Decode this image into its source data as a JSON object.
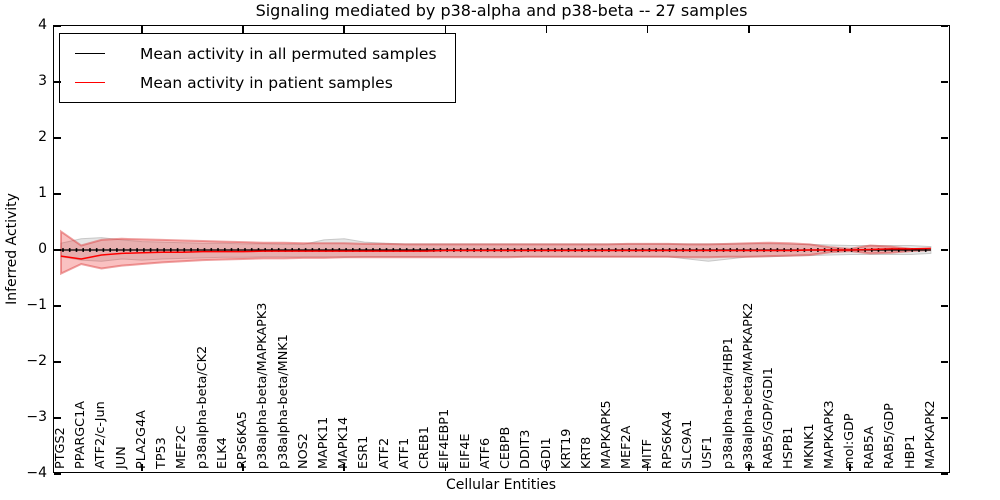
{
  "title": "Signaling mediated by p38-alpha and p38-beta -- 27 samples",
  "axes": {
    "ylabel": "Inferred Activity",
    "xlabel": "Cellular Entities",
    "yticks": [
      "4",
      "3",
      "2",
      "1",
      "0",
      "−1",
      "−2",
      "−3",
      "−4"
    ],
    "ylim": [
      -4,
      4
    ]
  },
  "legend": {
    "items": [
      {
        "label": "Mean activity in all permuted samples",
        "color": "#000000"
      },
      {
        "label": "Mean activity in patient samples",
        "color": "#ff0000"
      }
    ]
  },
  "colors": {
    "permuted_line": "#000000",
    "patient_line": "#ff0000",
    "patient_band_fill": "#ee3333",
    "patient_band_edge": "#dd4444",
    "permuted_band_fill": "#cfcfcf",
    "permuted_band_edge": "#bdbdbd",
    "axis": "#000000"
  },
  "chart_data": {
    "type": "line",
    "title": "Signaling mediated by p38-alpha and p38-beta -- 27 samples",
    "xlabel": "Cellular Entities",
    "ylabel": "Inferred Activity",
    "ylim": [
      -4,
      4
    ],
    "grid": false,
    "legend_position": "upper left",
    "categories": [
      "PTGS2",
      "PPARGC1A",
      "ATF2/c-Jun",
      "JUN",
      "PLA2G4A",
      "TP53",
      "MEF2C",
      "p38alpha-beta/CK2",
      "ELK4",
      "RPS6KA5",
      "p38alpha-beta/MAPKAPK3",
      "p38alpha-beta/MNK1",
      "NOS2",
      "MAPK11",
      "MAPK14",
      "ESR1",
      "ATF2",
      "ATF1",
      "CREB1",
      "EIF4EBP1",
      "EIF4E",
      "ATF6",
      "CEBPB",
      "DDIT3",
      "GDI1",
      "KRT19",
      "KRT8",
      "MAPKAPK5",
      "MEF2A",
      "MITF",
      "RPS6KA4",
      "SLC9A1",
      "USF1",
      "p38alpha-beta/HBP1",
      "p38alpha-beta/MAPKAPK2",
      "RAB5/GDP/GDI1",
      "HSPB1",
      "MKNK1",
      "MAPKAPK3",
      "mol:GDP",
      "RAB5A",
      "RAB5/GDP",
      "HBP1",
      "MAPKAPK2"
    ],
    "series": [
      {
        "name": "Mean activity in all permuted samples",
        "color": "#000000",
        "values": [
          0,
          0,
          0,
          0,
          0,
          0,
          0,
          0,
          0,
          0,
          0,
          0,
          0,
          0,
          0,
          0,
          0,
          0,
          0,
          0,
          0,
          0,
          0,
          0,
          0,
          0,
          0,
          0,
          0,
          0,
          0,
          0,
          0,
          0,
          0,
          0,
          0,
          0,
          0,
          0,
          0,
          0,
          0,
          0
        ]
      },
      {
        "name": "Mean activity in patient samples",
        "color": "#ff0000",
        "values": [
          -0.11,
          -0.16,
          -0.09,
          -0.06,
          -0.05,
          -0.04,
          -0.04,
          -0.03,
          -0.03,
          -0.03,
          -0.02,
          -0.02,
          -0.02,
          -0.02,
          -0.02,
          -0.02,
          -0.02,
          -0.02,
          -0.02,
          -0.01,
          -0.01,
          -0.01,
          -0.01,
          -0.01,
          -0.01,
          -0.01,
          -0.01,
          -0.01,
          -0.01,
          -0.01,
          -0.01,
          -0.01,
          -0.01,
          -0.01,
          -0.01,
          -0.01,
          -0.01,
          0,
          0,
          0,
          0.01,
          0.02,
          0.02,
          0.03
        ]
      },
      {
        "name": "Permuted samples range (band)",
        "type": "band",
        "color": "#cfcfcf",
        "upper": [
          0.12,
          0.2,
          0.22,
          0.18,
          0.15,
          0.14,
          0.13,
          0.12,
          0.12,
          0.11,
          0.11,
          0.1,
          0.1,
          0.18,
          0.2,
          0.14,
          0.12,
          0.11,
          0.11,
          0.11,
          0.11,
          0.11,
          0.11,
          0.11,
          0.11,
          0.11,
          0.11,
          0.11,
          0.11,
          0.11,
          0.11,
          0.11,
          0.11,
          0.11,
          0.11,
          0.11,
          0.1,
          0.1,
          0.09,
          0.08,
          0.08,
          0.08,
          0.08,
          0.06
        ],
        "lower": [
          -0.12,
          -0.18,
          -0.2,
          -0.16,
          -0.18,
          -0.16,
          -0.15,
          -0.14,
          -0.13,
          -0.13,
          -0.12,
          -0.12,
          -0.12,
          -0.12,
          -0.13,
          -0.12,
          -0.12,
          -0.12,
          -0.12,
          -0.12,
          -0.12,
          -0.12,
          -0.12,
          -0.12,
          -0.12,
          -0.12,
          -0.12,
          -0.12,
          -0.12,
          -0.12,
          -0.12,
          -0.16,
          -0.2,
          -0.16,
          -0.12,
          -0.12,
          -0.11,
          -0.1,
          -0.09,
          -0.08,
          -0.08,
          -0.08,
          -0.08,
          -0.06
        ]
      },
      {
        "name": "Patient samples range (band)",
        "type": "band",
        "color": "#ee3333",
        "upper": [
          0.33,
          0.08,
          0.18,
          0.2,
          0.19,
          0.18,
          0.17,
          0.16,
          0.15,
          0.14,
          0.13,
          0.13,
          0.12,
          0.12,
          0.12,
          0.11,
          0.11,
          0.1,
          0.1,
          0.1,
          0.1,
          0.1,
          0.1,
          0.1,
          0.1,
          0.1,
          0.1,
          0.1,
          0.11,
          0.11,
          0.11,
          0.1,
          0.1,
          0.11,
          0.12,
          0.13,
          0.12,
          0.1,
          0.05,
          0.02,
          0.08,
          0.06,
          0.02,
          0
        ],
        "lower": [
          -0.42,
          -0.25,
          -0.33,
          -0.28,
          -0.25,
          -0.22,
          -0.2,
          -0.18,
          -0.17,
          -0.16,
          -0.15,
          -0.15,
          -0.14,
          -0.14,
          -0.13,
          -0.13,
          -0.13,
          -0.13,
          -0.13,
          -0.13,
          -0.13,
          -0.13,
          -0.13,
          -0.12,
          -0.12,
          -0.12,
          -0.12,
          -0.12,
          -0.12,
          -0.12,
          -0.12,
          -0.13,
          -0.13,
          -0.12,
          -0.12,
          -0.11,
          -0.1,
          -0.09,
          -0.04,
          -0.02,
          -0.06,
          -0.05,
          -0.02,
          0
        ]
      }
    ]
  }
}
